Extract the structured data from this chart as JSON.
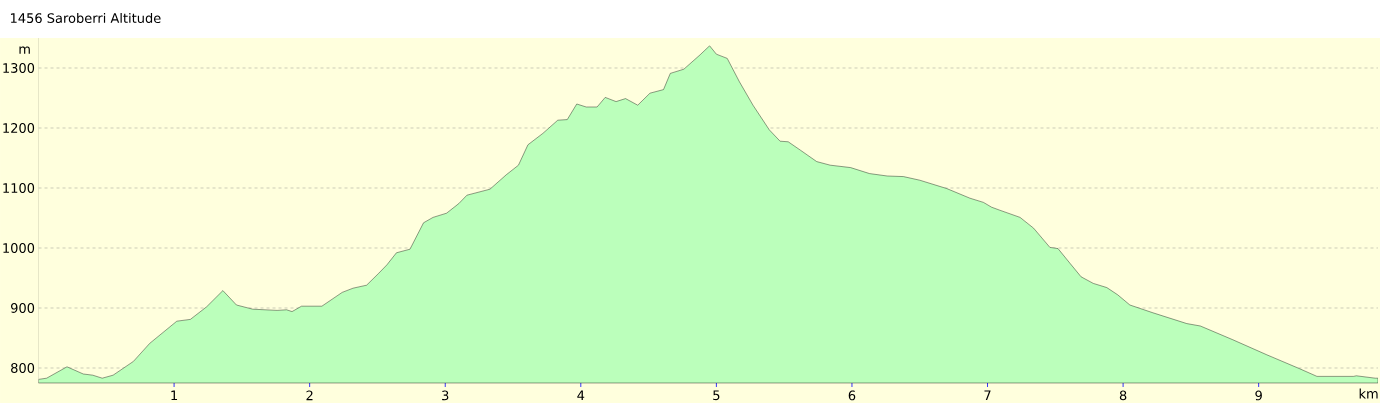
{
  "chart_data": {
    "type": "area",
    "title": "1456 Saroberri Altitude",
    "xlabel": "km",
    "ylabel": "m",
    "x": [
      0,
      0.06,
      0.21,
      0.33,
      0.4,
      0.47,
      0.55,
      0.7,
      0.82,
      1.02,
      1.12,
      1.24,
      1.36,
      1.46,
      1.58,
      1.76,
      1.83,
      1.87,
      1.94,
      2.09,
      2.24,
      2.32,
      2.42,
      2.51,
      2.57,
      2.64,
      2.74,
      2.84,
      2.91,
      3.01,
      3.1,
      3.16,
      3.33,
      3.45,
      3.54,
      3.61,
      3.72,
      3.83,
      3.9,
      3.97,
      4.04,
      4.12,
      4.18,
      4.26,
      4.33,
      4.42,
      4.51,
      4.61,
      4.66,
      4.76,
      4.88,
      4.95,
      5.0,
      5.08,
      5.17,
      5.27,
      5.39,
      5.47,
      5.53,
      5.62,
      5.74,
      5.84,
      5.99,
      6.13,
      6.26,
      6.38,
      6.5,
      6.7,
      6.87,
      6.97,
      7.03,
      7.09,
      7.24,
      7.34,
      7.46,
      7.52,
      7.61,
      7.69,
      7.78,
      7.88,
      7.96,
      8.05,
      8.22,
      8.47,
      8.57,
      8.81,
      9.06,
      9.3,
      9.43,
      9.7,
      9.72,
      9.86,
      9.88
    ],
    "values": [
      781,
      783,
      802,
      790,
      788,
      783,
      788,
      811,
      841,
      878,
      881,
      902,
      929,
      905,
      898,
      896,
      897,
      894,
      903,
      903,
      926,
      933,
      938,
      958,
      972,
      992,
      998,
      1042,
      1051,
      1058,
      1074,
      1088,
      1098,
      1122,
      1138,
      1172,
      1191,
      1213,
      1214,
      1240,
      1235,
      1235,
      1251,
      1244,
      1249,
      1238,
      1258,
      1264,
      1291,
      1298,
      1322,
      1337,
      1323,
      1316,
      1277,
      1238,
      1197,
      1178,
      1177,
      1163,
      1144,
      1138,
      1134,
      1124,
      1120,
      1119,
      1113,
      1099,
      1083,
      1076,
      1068,
      1063,
      1051,
      1033,
      1001,
      999,
      974,
      952,
      941,
      934,
      922,
      905,
      892,
      874,
      870,
      847,
      822,
      799,
      786,
      786,
      787,
      783,
      783
    ],
    "color": "#bbffbb",
    "xlim": [
      0,
      9.88
    ],
    "ylim": [
      775,
      1350
    ],
    "xticks": [
      1,
      2,
      3,
      4,
      5,
      6,
      7,
      8,
      9
    ],
    "yticks": [
      800,
      900,
      1000,
      1100,
      1200,
      1300
    ],
    "grid": "y",
    "line_style": "solid",
    "marker": "none"
  }
}
